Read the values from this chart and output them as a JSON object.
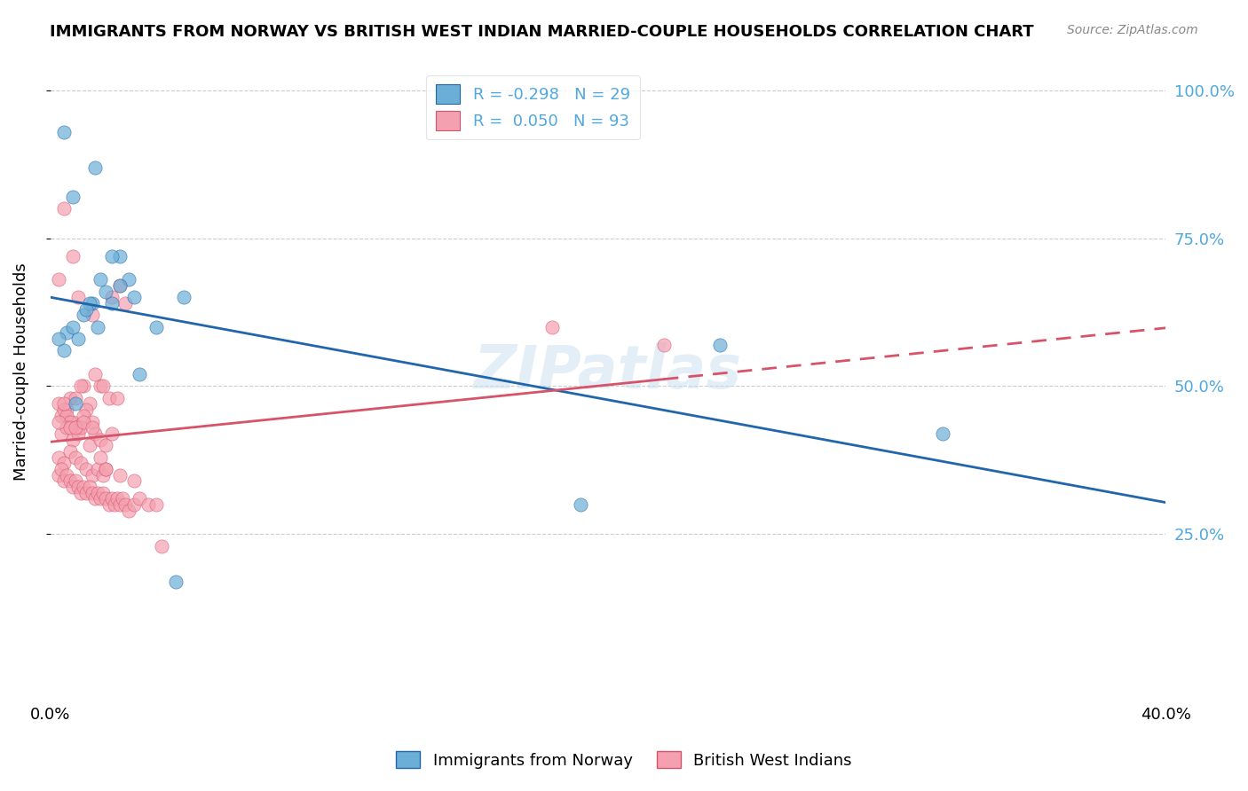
{
  "title": "IMMIGRANTS FROM NORWAY VS BRITISH WEST INDIAN MARRIED-COUPLE HOUSEHOLDS CORRELATION CHART",
  "source": "Source: ZipAtlas.com",
  "ylabel": "Married-couple Households",
  "xmin": 0.0,
  "xmax": 0.4,
  "ymin": 0.0,
  "ymax": 1.05,
  "yticks": [
    0.25,
    0.5,
    0.75,
    1.0
  ],
  "ytick_labels": [
    "25.0%",
    "50.0%",
    "75.0%",
    "100.0%"
  ],
  "watermark": "ZIPatlas",
  "legend_r_norway": "-0.298",
  "legend_n_norway": "29",
  "legend_r_bwi": "0.050",
  "legend_n_bwi": "93",
  "blue_color": "#6baed6",
  "blue_line_color": "#2166ac",
  "pink_color": "#f4a0b0",
  "pink_line_color": "#d6536a",
  "norway_x": [
    0.005,
    0.012,
    0.025,
    0.008,
    0.018,
    0.03,
    0.022,
    0.015,
    0.01,
    0.032,
    0.006,
    0.02,
    0.014,
    0.028,
    0.009,
    0.24,
    0.32,
    0.045,
    0.003,
    0.038,
    0.017,
    0.013,
    0.025,
    0.016,
    0.005,
    0.022,
    0.008,
    0.19,
    0.048
  ],
  "norway_y": [
    0.56,
    0.62,
    0.72,
    0.82,
    0.68,
    0.65,
    0.64,
    0.64,
    0.58,
    0.52,
    0.59,
    0.66,
    0.64,
    0.68,
    0.47,
    0.57,
    0.42,
    0.17,
    0.58,
    0.6,
    0.6,
    0.63,
    0.67,
    0.87,
    0.93,
    0.72,
    0.6,
    0.3,
    0.65
  ],
  "bwi_x": [
    0.005,
    0.008,
    0.003,
    0.01,
    0.015,
    0.007,
    0.012,
    0.018,
    0.022,
    0.025,
    0.006,
    0.009,
    0.004,
    0.011,
    0.014,
    0.016,
    0.019,
    0.021,
    0.024,
    0.027,
    0.003,
    0.005,
    0.008,
    0.006,
    0.01,
    0.013,
    0.007,
    0.009,
    0.012,
    0.015,
    0.004,
    0.006,
    0.008,
    0.01,
    0.011,
    0.014,
    0.016,
    0.018,
    0.02,
    0.022,
    0.003,
    0.005,
    0.007,
    0.009,
    0.011,
    0.013,
    0.015,
    0.017,
    0.019,
    0.02,
    0.003,
    0.004,
    0.005,
    0.006,
    0.007,
    0.008,
    0.009,
    0.01,
    0.011,
    0.012,
    0.013,
    0.014,
    0.015,
    0.016,
    0.017,
    0.018,
    0.019,
    0.02,
    0.021,
    0.022,
    0.023,
    0.024,
    0.025,
    0.026,
    0.027,
    0.028,
    0.03,
    0.032,
    0.035,
    0.038,
    0.003,
    0.005,
    0.007,
    0.009,
    0.012,
    0.015,
    0.018,
    0.02,
    0.025,
    0.03,
    0.22,
    0.18,
    0.04
  ],
  "bwi_y": [
    0.8,
    0.72,
    0.68,
    0.65,
    0.62,
    0.48,
    0.5,
    0.5,
    0.65,
    0.67,
    0.46,
    0.48,
    0.45,
    0.5,
    0.47,
    0.52,
    0.5,
    0.48,
    0.48,
    0.64,
    0.47,
    0.46,
    0.44,
    0.45,
    0.43,
    0.46,
    0.44,
    0.43,
    0.45,
    0.44,
    0.42,
    0.43,
    0.41,
    0.42,
    0.43,
    0.4,
    0.42,
    0.41,
    0.4,
    0.42,
    0.38,
    0.37,
    0.39,
    0.38,
    0.37,
    0.36,
    0.35,
    0.36,
    0.35,
    0.36,
    0.35,
    0.36,
    0.34,
    0.35,
    0.34,
    0.33,
    0.34,
    0.33,
    0.32,
    0.33,
    0.32,
    0.33,
    0.32,
    0.31,
    0.32,
    0.31,
    0.32,
    0.31,
    0.3,
    0.31,
    0.3,
    0.31,
    0.3,
    0.31,
    0.3,
    0.29,
    0.3,
    0.31,
    0.3,
    0.3,
    0.44,
    0.47,
    0.43,
    0.43,
    0.44,
    0.43,
    0.38,
    0.36,
    0.35,
    0.34,
    0.57,
    0.6,
    0.23
  ]
}
